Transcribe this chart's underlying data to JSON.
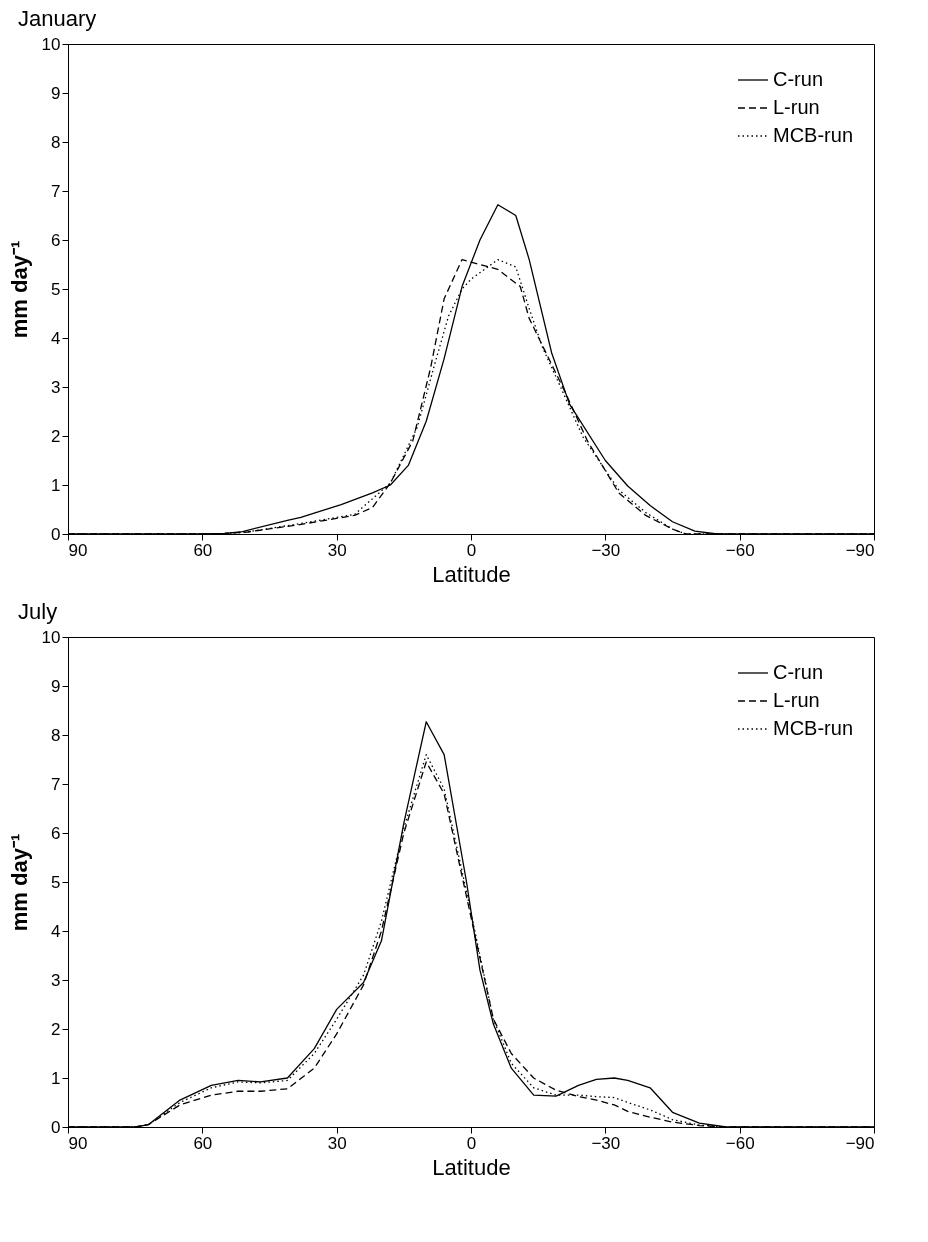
{
  "chart_data": [
    {
      "type": "line",
      "title": "January",
      "xlabel": "Latitude",
      "ylabel": "mm day⁻¹",
      "xlim": [
        90,
        -90
      ],
      "xticks": [
        90,
        60,
        30,
        0,
        -30,
        -60,
        -90
      ],
      "ylim": [
        0,
        10
      ],
      "yticks": [
        0,
        1,
        2,
        3,
        4,
        5,
        6,
        7,
        8,
        9,
        10
      ],
      "grid": false,
      "legend": "top right",
      "series": [
        {
          "name": "C-run",
          "color": "#000000",
          "line_style": "solid",
          "x": [
            90,
            70,
            60,
            55,
            51,
            41,
            38,
            29,
            22,
            18,
            14,
            10,
            6,
            2,
            -2,
            -6,
            -10,
            -13,
            -18,
            -22,
            -30,
            -35,
            -40,
            -45,
            -50,
            -55,
            -70,
            -90
          ],
          "values": [
            0,
            0,
            0,
            0.01,
            0.05,
            0.28,
            0.34,
            0.6,
            0.84,
            1.0,
            1.4,
            2.3,
            3.58,
            5.05,
            6.0,
            6.72,
            6.5,
            5.6,
            3.7,
            2.65,
            1.5,
            0.98,
            0.58,
            0.25,
            0.06,
            0,
            0,
            0
          ]
        },
        {
          "name": "L-run",
          "color": "#000000",
          "line_style": "dashed",
          "x": [
            90,
            70,
            60,
            55,
            50,
            39,
            26,
            22,
            18,
            13,
            9,
            6,
            2,
            0,
            -6,
            -11,
            -13,
            -17,
            -21,
            -26,
            -33,
            -39,
            -45,
            -48,
            -70,
            -90
          ],
          "values": [
            0,
            0,
            0,
            0.01,
            0.04,
            0.18,
            0.38,
            0.54,
            1.04,
            1.9,
            3.4,
            4.8,
            5.6,
            5.55,
            5.4,
            5.05,
            4.4,
            3.65,
            2.9,
            1.9,
            0.84,
            0.38,
            0.1,
            0,
            0,
            0
          ]
        },
        {
          "name": "MCB-run",
          "color": "#000000",
          "line_style": "dotted",
          "x": [
            90,
            70,
            60,
            55,
            50,
            39,
            26,
            18,
            12,
            8,
            5,
            2,
            0,
            -6,
            -10,
            -13,
            -16,
            -20,
            -25,
            -33,
            -39,
            -45,
            -48,
            -70,
            -90
          ],
          "values": [
            0,
            0,
            0,
            0.01,
            0.04,
            0.2,
            0.4,
            1.04,
            2.18,
            3.5,
            4.45,
            5.0,
            5.2,
            5.6,
            5.45,
            4.6,
            3.8,
            3.0,
            1.98,
            0.9,
            0.44,
            0.1,
            0,
            0,
            0
          ]
        }
      ]
    },
    {
      "type": "line",
      "title": "July",
      "xlabel": "Latitude",
      "ylabel": "mm day⁻¹",
      "xlim": [
        90,
        -90
      ],
      "xticks": [
        90,
        60,
        30,
        0,
        -30,
        -60,
        -90
      ],
      "ylim": [
        0,
        10
      ],
      "yticks": [
        0,
        1,
        2,
        3,
        4,
        5,
        6,
        7,
        8,
        9,
        10
      ],
      "grid": false,
      "legend": "top right",
      "series": [
        {
          "name": "C-run",
          "color": "#000000",
          "line_style": "solid",
          "x": [
            90,
            75,
            72,
            65,
            58,
            52,
            47,
            41,
            35,
            30,
            24,
            20,
            15,
            10,
            6,
            1,
            -2,
            -5,
            -9,
            -14,
            -19,
            -24,
            -28,
            -32,
            -35,
            -40,
            -45,
            -51,
            -57,
            -70,
            -90
          ],
          "values": [
            0,
            0,
            0.05,
            0.55,
            0.85,
            0.95,
            0.92,
            1.0,
            1.6,
            2.4,
            2.95,
            3.8,
            6.2,
            8.27,
            7.6,
            5.0,
            3.2,
            2.1,
            1.2,
            0.65,
            0.63,
            0.85,
            0.97,
            1.0,
            0.95,
            0.8,
            0.3,
            0.08,
            0,
            0,
            0
          ]
        },
        {
          "name": "L-run",
          "color": "#000000",
          "line_style": "dashed",
          "x": [
            90,
            75,
            72,
            65,
            58,
            52,
            47,
            41,
            35,
            30,
            24,
            20,
            15,
            10,
            6,
            1,
            -5,
            -9,
            -14,
            -19,
            -24,
            -28,
            -32,
            -35,
            -40,
            -45,
            -51,
            -57,
            -70,
            -90
          ],
          "values": [
            0,
            0,
            0.05,
            0.45,
            0.65,
            0.73,
            0.73,
            0.78,
            1.2,
            1.9,
            2.9,
            4.0,
            6.0,
            7.45,
            6.8,
            4.7,
            2.2,
            1.5,
            1.0,
            0.75,
            0.62,
            0.55,
            0.45,
            0.32,
            0.2,
            0.1,
            0.03,
            0,
            0,
            0
          ]
        },
        {
          "name": "MCB-run",
          "color": "#000000",
          "line_style": "dotted",
          "x": [
            90,
            75,
            72,
            65,
            58,
            52,
            47,
            41,
            35,
            30,
            24,
            20,
            15,
            10,
            6,
            1,
            -5,
            -9,
            -14,
            -19,
            -24,
            -28,
            -32,
            -35,
            -40,
            -45,
            -51,
            -57,
            -70,
            -90
          ],
          "values": [
            0,
            0,
            0.05,
            0.5,
            0.8,
            0.92,
            0.9,
            0.95,
            1.5,
            2.2,
            3.1,
            4.2,
            6.1,
            7.6,
            6.9,
            4.8,
            2.2,
            1.3,
            0.8,
            0.65,
            0.65,
            0.62,
            0.6,
            0.5,
            0.35,
            0.15,
            0.04,
            0,
            0,
            0
          ]
        }
      ]
    }
  ]
}
